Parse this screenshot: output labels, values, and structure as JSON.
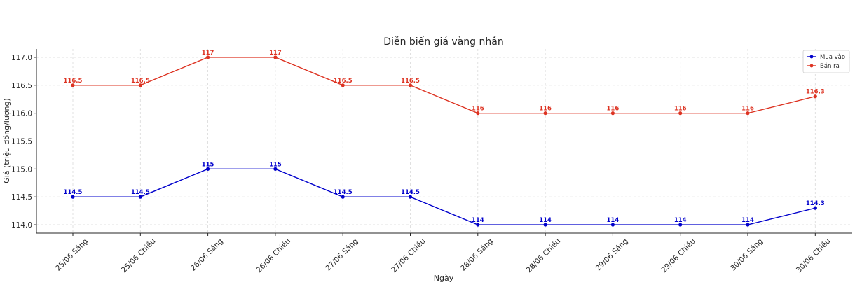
{
  "chart_data": {
    "type": "line",
    "title": "Diễn biến giá vàng nhẫn",
    "xlabel": "Ngày",
    "ylabel": "Giá (triệu đồng/lượng)",
    "categories": [
      "25/06 Sáng",
      "25/06 Chiều",
      "26/06 Sáng",
      "26/06 Chiều",
      "27/06 Sáng",
      "27/06 Chiều",
      "28/06 Sáng",
      "28/06 Chiều",
      "29/06 Sáng",
      "29/06 Chiều",
      "30/06 Sáng",
      "30/06 Chiều"
    ],
    "ylim": [
      113.85,
      117.15
    ],
    "yticks": [
      114.0,
      114.5,
      115.0,
      115.5,
      116.0,
      116.5,
      117.0
    ],
    "ytick_labels": [
      "114.0",
      "114.5",
      "115.0",
      "115.5",
      "116.0",
      "116.5",
      "117.0"
    ],
    "grid": true,
    "legend_position": "top-right",
    "series": [
      {
        "name": "Mua vào",
        "color": "#0000cc",
        "values": [
          114.5,
          114.5,
          115,
          115,
          114.5,
          114.5,
          114,
          114,
          114,
          114,
          114,
          114.3
        ],
        "labels": [
          "114.5",
          "114.5",
          "115",
          "115",
          "114.5",
          "114.5",
          "114",
          "114",
          "114",
          "114",
          "114",
          "114.3"
        ]
      },
      {
        "name": "Bán ra",
        "color": "#dd3322",
        "values": [
          116.5,
          116.5,
          117,
          117,
          116.5,
          116.5,
          116,
          116,
          116,
          116,
          116,
          116.3
        ],
        "labels": [
          "116.5",
          "116.5",
          "117",
          "117",
          "116.5",
          "116.5",
          "116",
          "116",
          "116",
          "116",
          "116",
          "116.3"
        ]
      }
    ]
  }
}
